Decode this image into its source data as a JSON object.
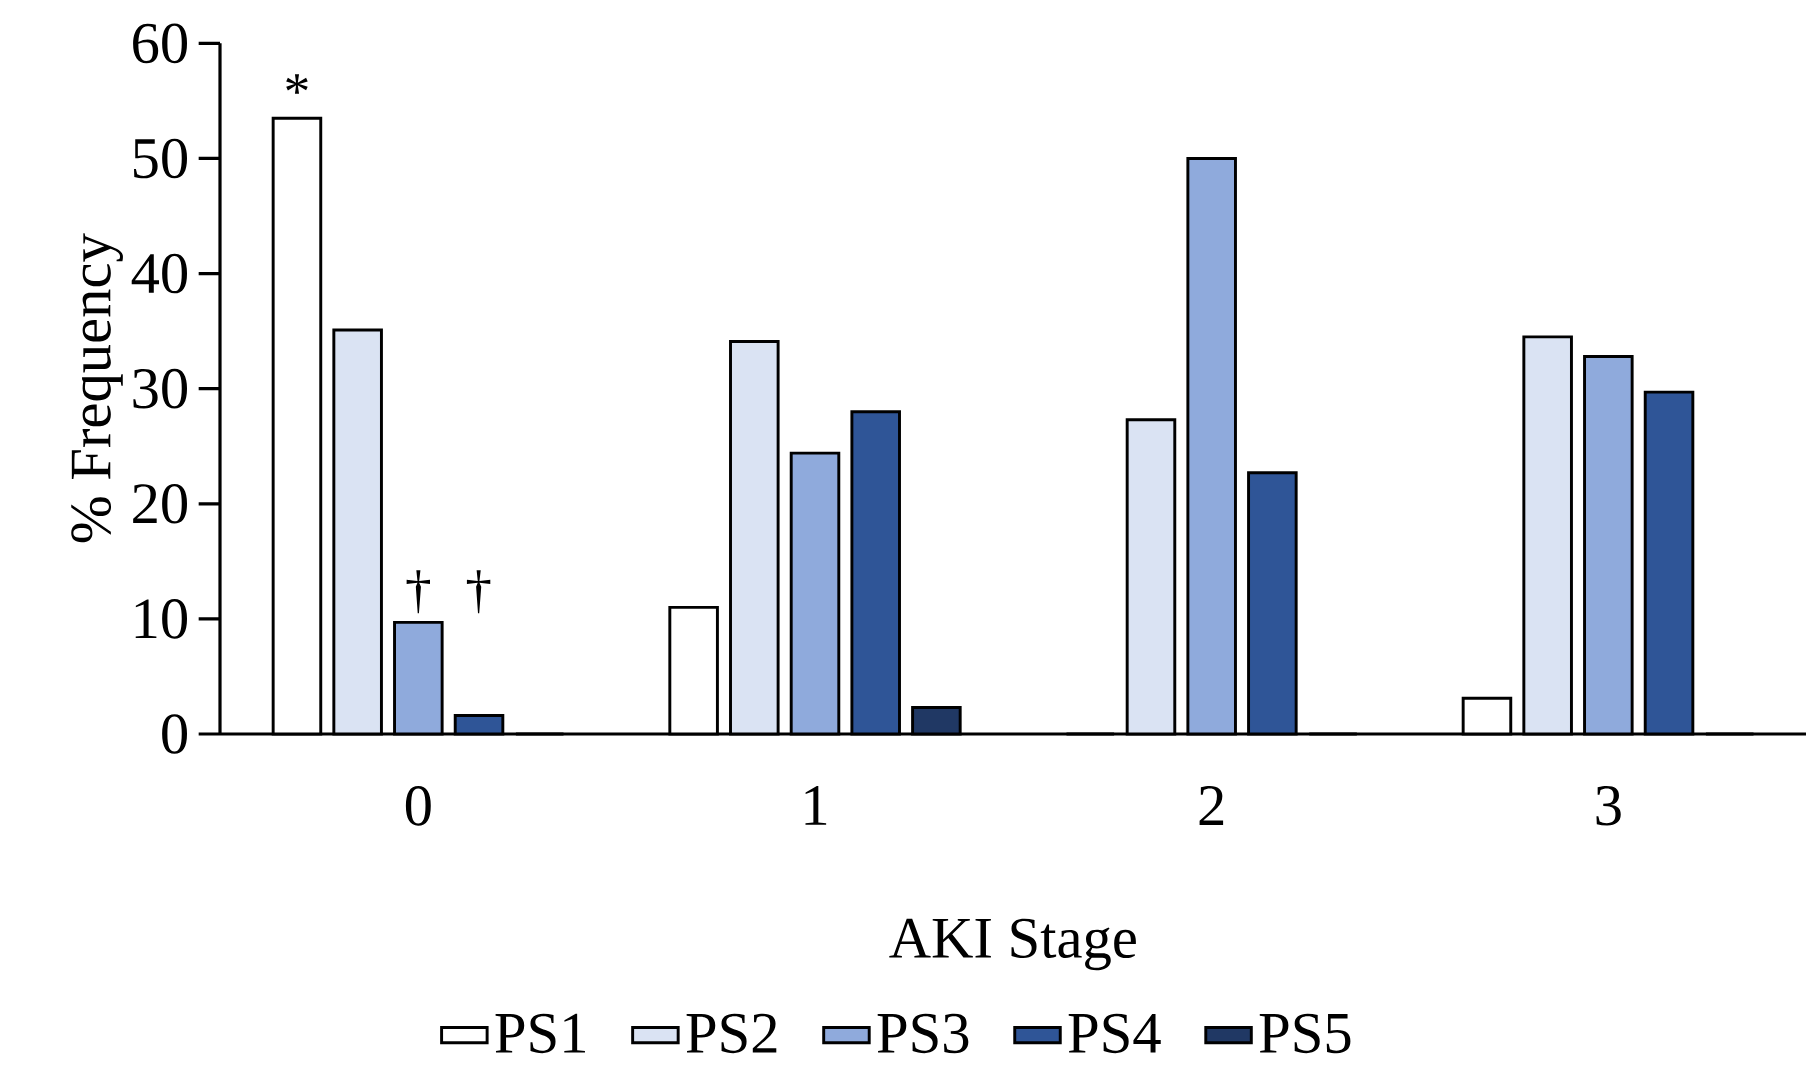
{
  "chart_data": {
    "type": "bar",
    "xlabel": "AKI Stage",
    "ylabel": "% Frequency",
    "categories": [
      "0",
      "1",
      "2",
      "3"
    ],
    "series": [
      {
        "name": "PS1",
        "color": "#ffffff",
        "values": [
          53.5,
          11,
          0,
          3.1
        ]
      },
      {
        "name": "PS2",
        "color": "#dae3f3",
        "values": [
          35.1,
          34.1,
          27.3,
          34.5
        ]
      },
      {
        "name": "PS3",
        "color": "#8faadc",
        "values": [
          9.7,
          24.4,
          50,
          32.8
        ]
      },
      {
        "name": "PS4",
        "color": "#2f5597",
        "values": [
          1.6,
          28,
          22.7,
          29.7
        ]
      },
      {
        "name": "PS5",
        "color": "#203864",
        "values": [
          0,
          2.3,
          0,
          0
        ]
      }
    ],
    "ylim": [
      0,
      60
    ],
    "yticks": [
      0,
      10,
      20,
      30,
      40,
      50,
      60
    ],
    "grid": false,
    "legend": "bottom",
    "annotations": [
      "*",
      "†",
      "†"
    ]
  }
}
